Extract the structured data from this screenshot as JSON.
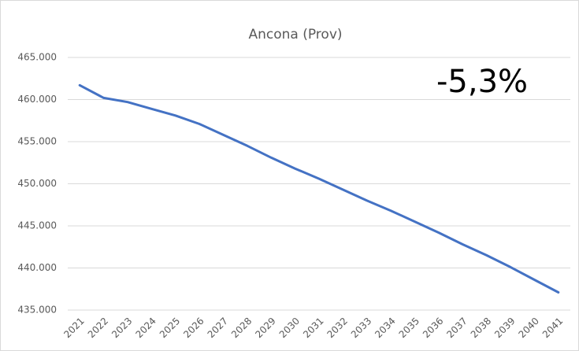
{
  "chart_data": {
    "type": "line",
    "title": "Ancona (Prov)",
    "annotation": "-5,3%",
    "categories": [
      "2021",
      "2022",
      "2023",
      "2024",
      "2025",
      "2026",
      "2027",
      "2028",
      "2029",
      "2030",
      "2031",
      "2032",
      "2033",
      "2034",
      "2035",
      "2036",
      "2037",
      "2038",
      "2039",
      "2040",
      "2041"
    ],
    "values": [
      461700,
      460200,
      459700,
      458900,
      458100,
      457100,
      455800,
      454500,
      453100,
      451800,
      450600,
      449300,
      448000,
      446800,
      445500,
      444200,
      442800,
      441500,
      440100,
      438600,
      437100
    ],
    "color": "#4472c4",
    "ylim": [
      435000,
      465000
    ],
    "yticks": [
      {
        "value": 435000,
        "label": "435.000"
      },
      {
        "value": 440000,
        "label": "440.000"
      },
      {
        "value": 445000,
        "label": "445.000"
      },
      {
        "value": 450000,
        "label": "450.000"
      },
      {
        "value": 455000,
        "label": "455.000"
      },
      {
        "value": 460000,
        "label": "460.000"
      },
      {
        "value": 465000,
        "label": "465.000"
      }
    ],
    "grid": true
  }
}
